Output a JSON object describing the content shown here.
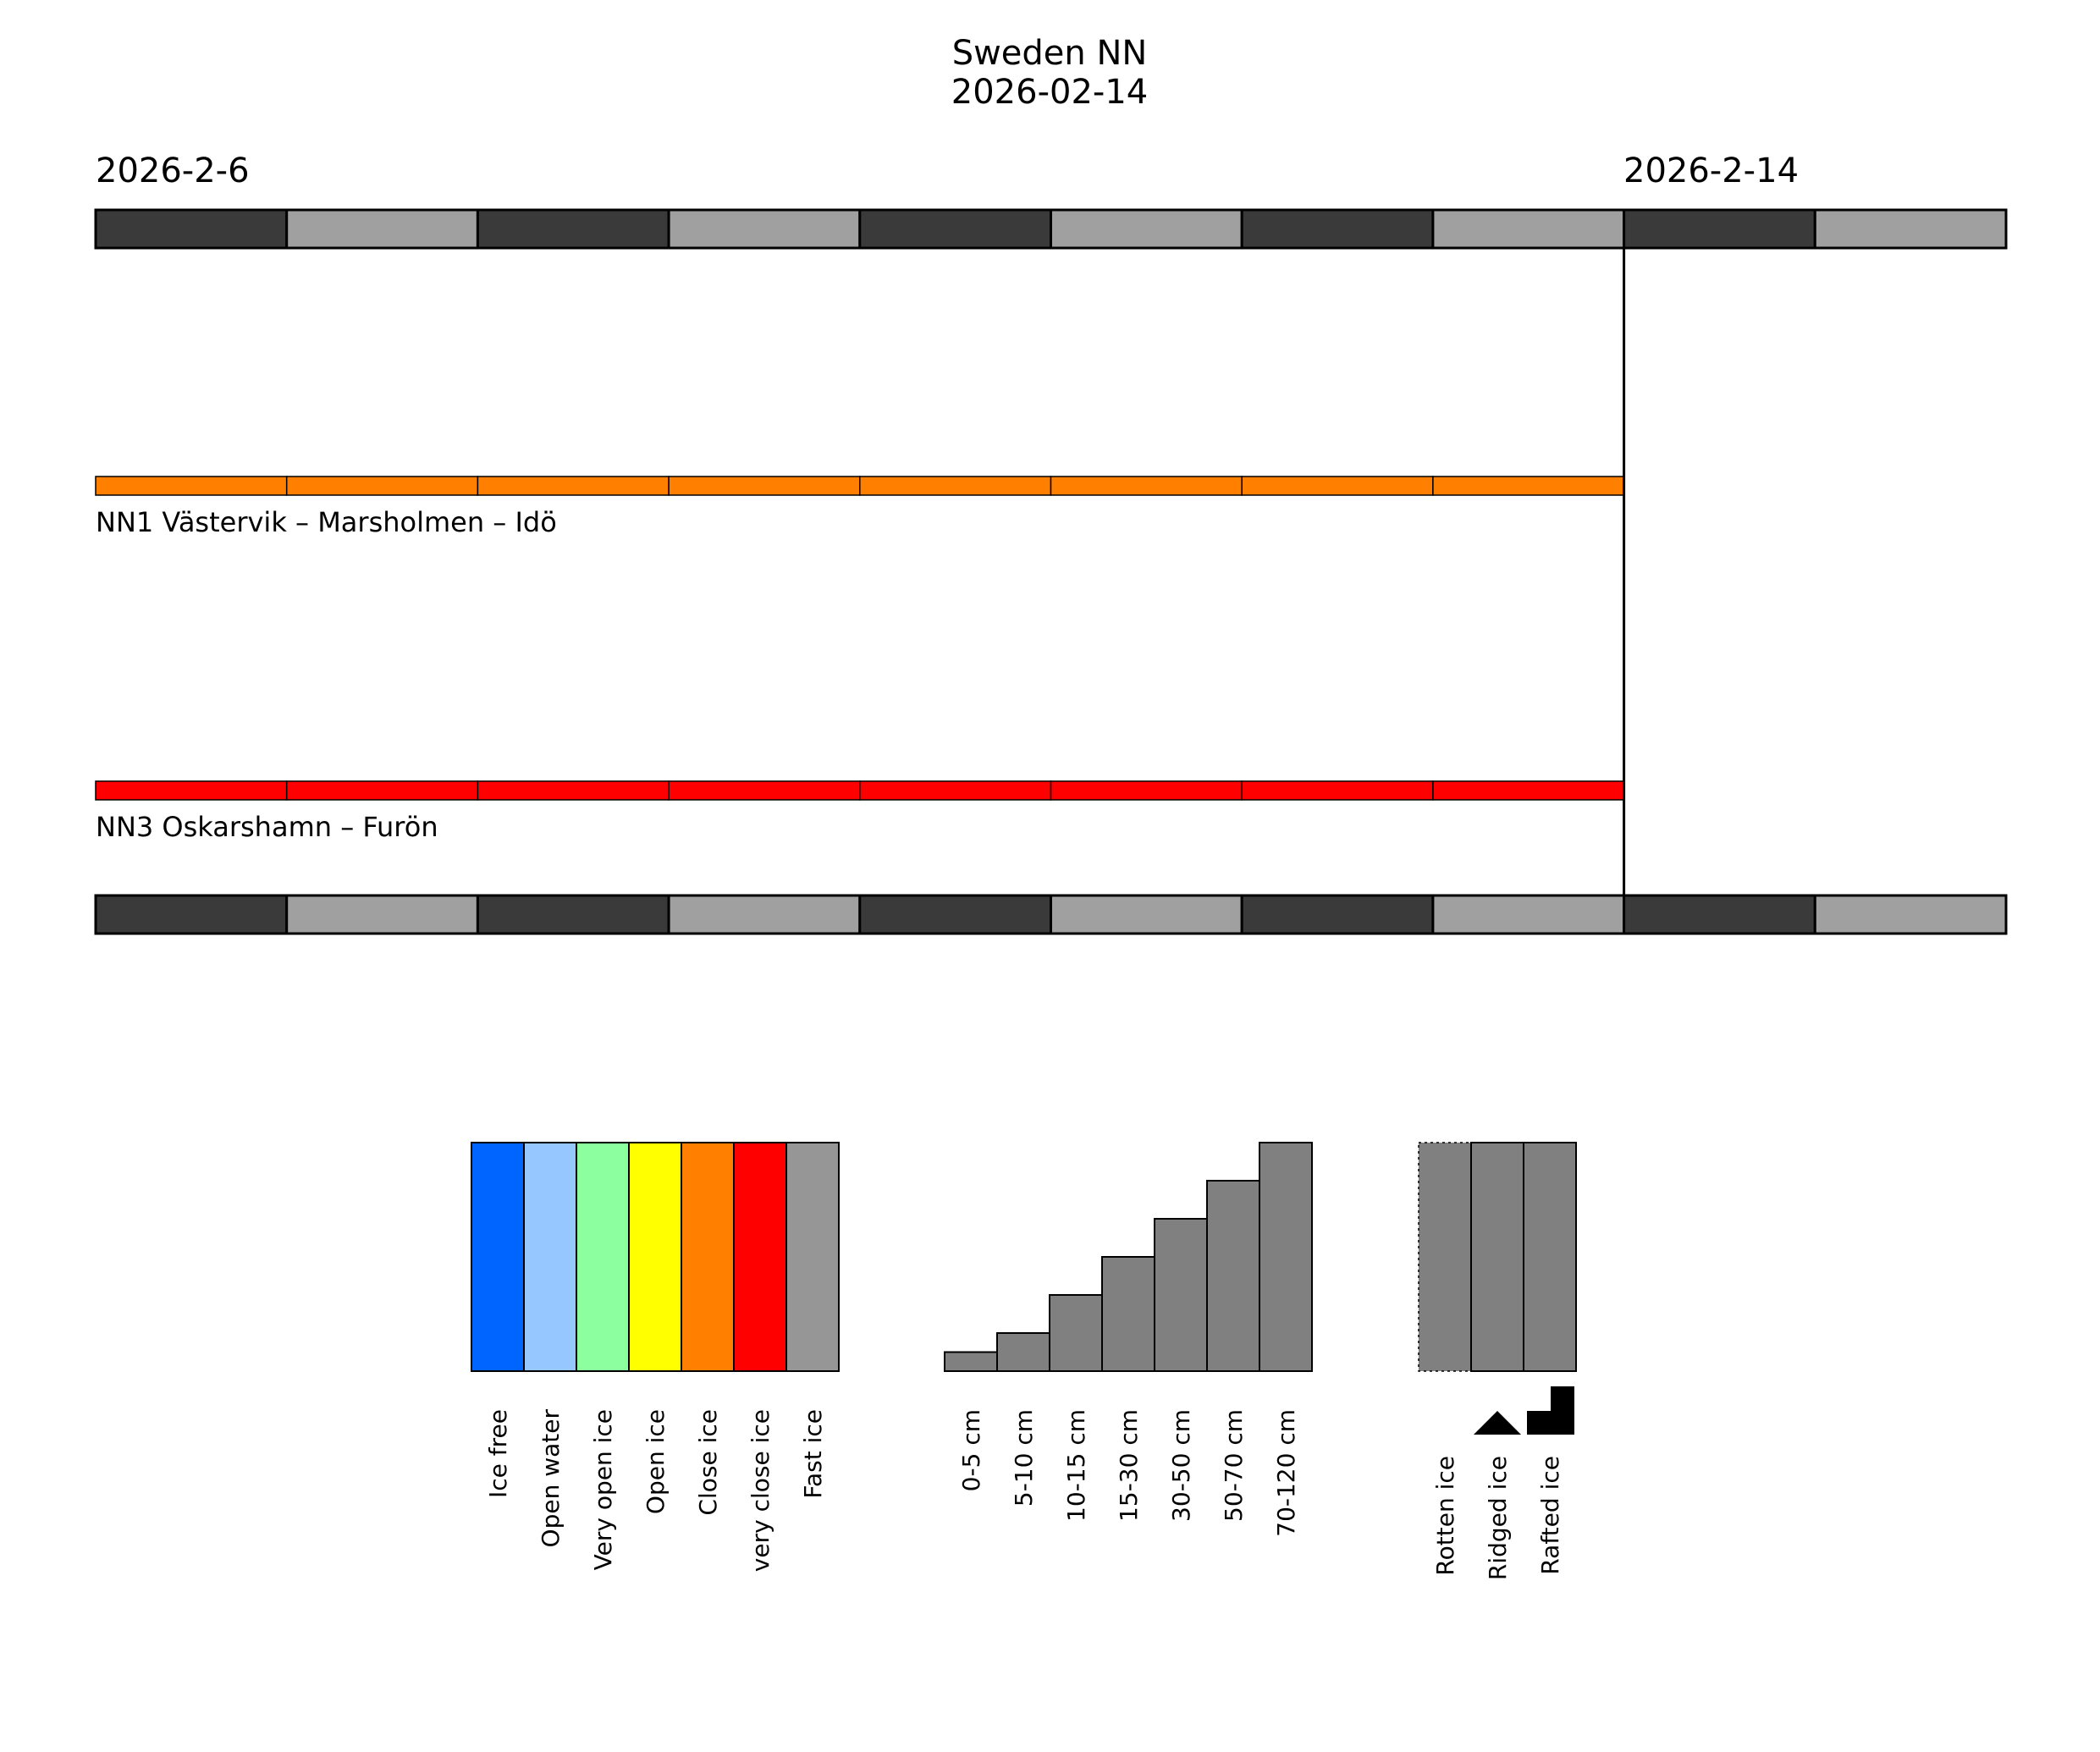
{
  "title": {
    "line1": "Sweden NN",
    "line2": "2026-02-14"
  },
  "chart_data": {
    "type": "timeline",
    "title": "Sweden NN 2026-02-14",
    "start_label": "2026-2-6",
    "current_label": "2026-2-14",
    "start_day": 0,
    "current_day": 8,
    "total_days": 10,
    "day_colors": [
      "#3a3a3a",
      "#a0a0a0"
    ],
    "routes": [
      {
        "name": "NN1 Västervik – Marsholmen – Idö",
        "color": "#ff7f00",
        "ice_type": "Close ice",
        "days": [
          0,
          1,
          2,
          3,
          4,
          5,
          6,
          7
        ]
      },
      {
        "name": "NN3 Oskarshamn – Furön",
        "color": "#ff0000",
        "ice_type": "very close ice",
        "days": [
          0,
          1,
          2,
          3,
          4,
          5,
          6,
          7
        ]
      }
    ],
    "legend_ice_type": [
      {
        "label": "Ice free",
        "color": "#0064ff"
      },
      {
        "label": "Open water",
        "color": "#96c8ff"
      },
      {
        "label": "Very open ice",
        "color": "#8cff9f"
      },
      {
        "label": "Open ice",
        "color": "#ffff00"
      },
      {
        "label": "Close ice",
        "color": "#ff7f00"
      },
      {
        "label": "very close ice",
        "color": "#ff0000"
      },
      {
        "label": "Fast ice",
        "color": "#969696"
      }
    ],
    "legend_thickness": [
      {
        "label": "0-5 cm",
        "level": 1
      },
      {
        "label": "5-10 cm",
        "level": 2
      },
      {
        "label": "10-15 cm",
        "level": 4
      },
      {
        "label": "15-30 cm",
        "level": 6
      },
      {
        "label": "30-50 cm",
        "level": 8
      },
      {
        "label": "50-70 cm",
        "level": 10
      },
      {
        "label": "70-120 cm",
        "level": 12
      }
    ],
    "legend_thickness_max": 12,
    "thickness_color": "#808080",
    "legend_other": [
      {
        "label": "Rotten ice",
        "symbol": "dotted-border",
        "icon": "rotten-ice-icon"
      },
      {
        "label": "Ridged ice",
        "symbol": "triangle",
        "icon": "ridged-ice-icon"
      },
      {
        "label": "Rafted ice",
        "symbol": "step",
        "icon": "rafted-ice-icon"
      }
    ]
  }
}
